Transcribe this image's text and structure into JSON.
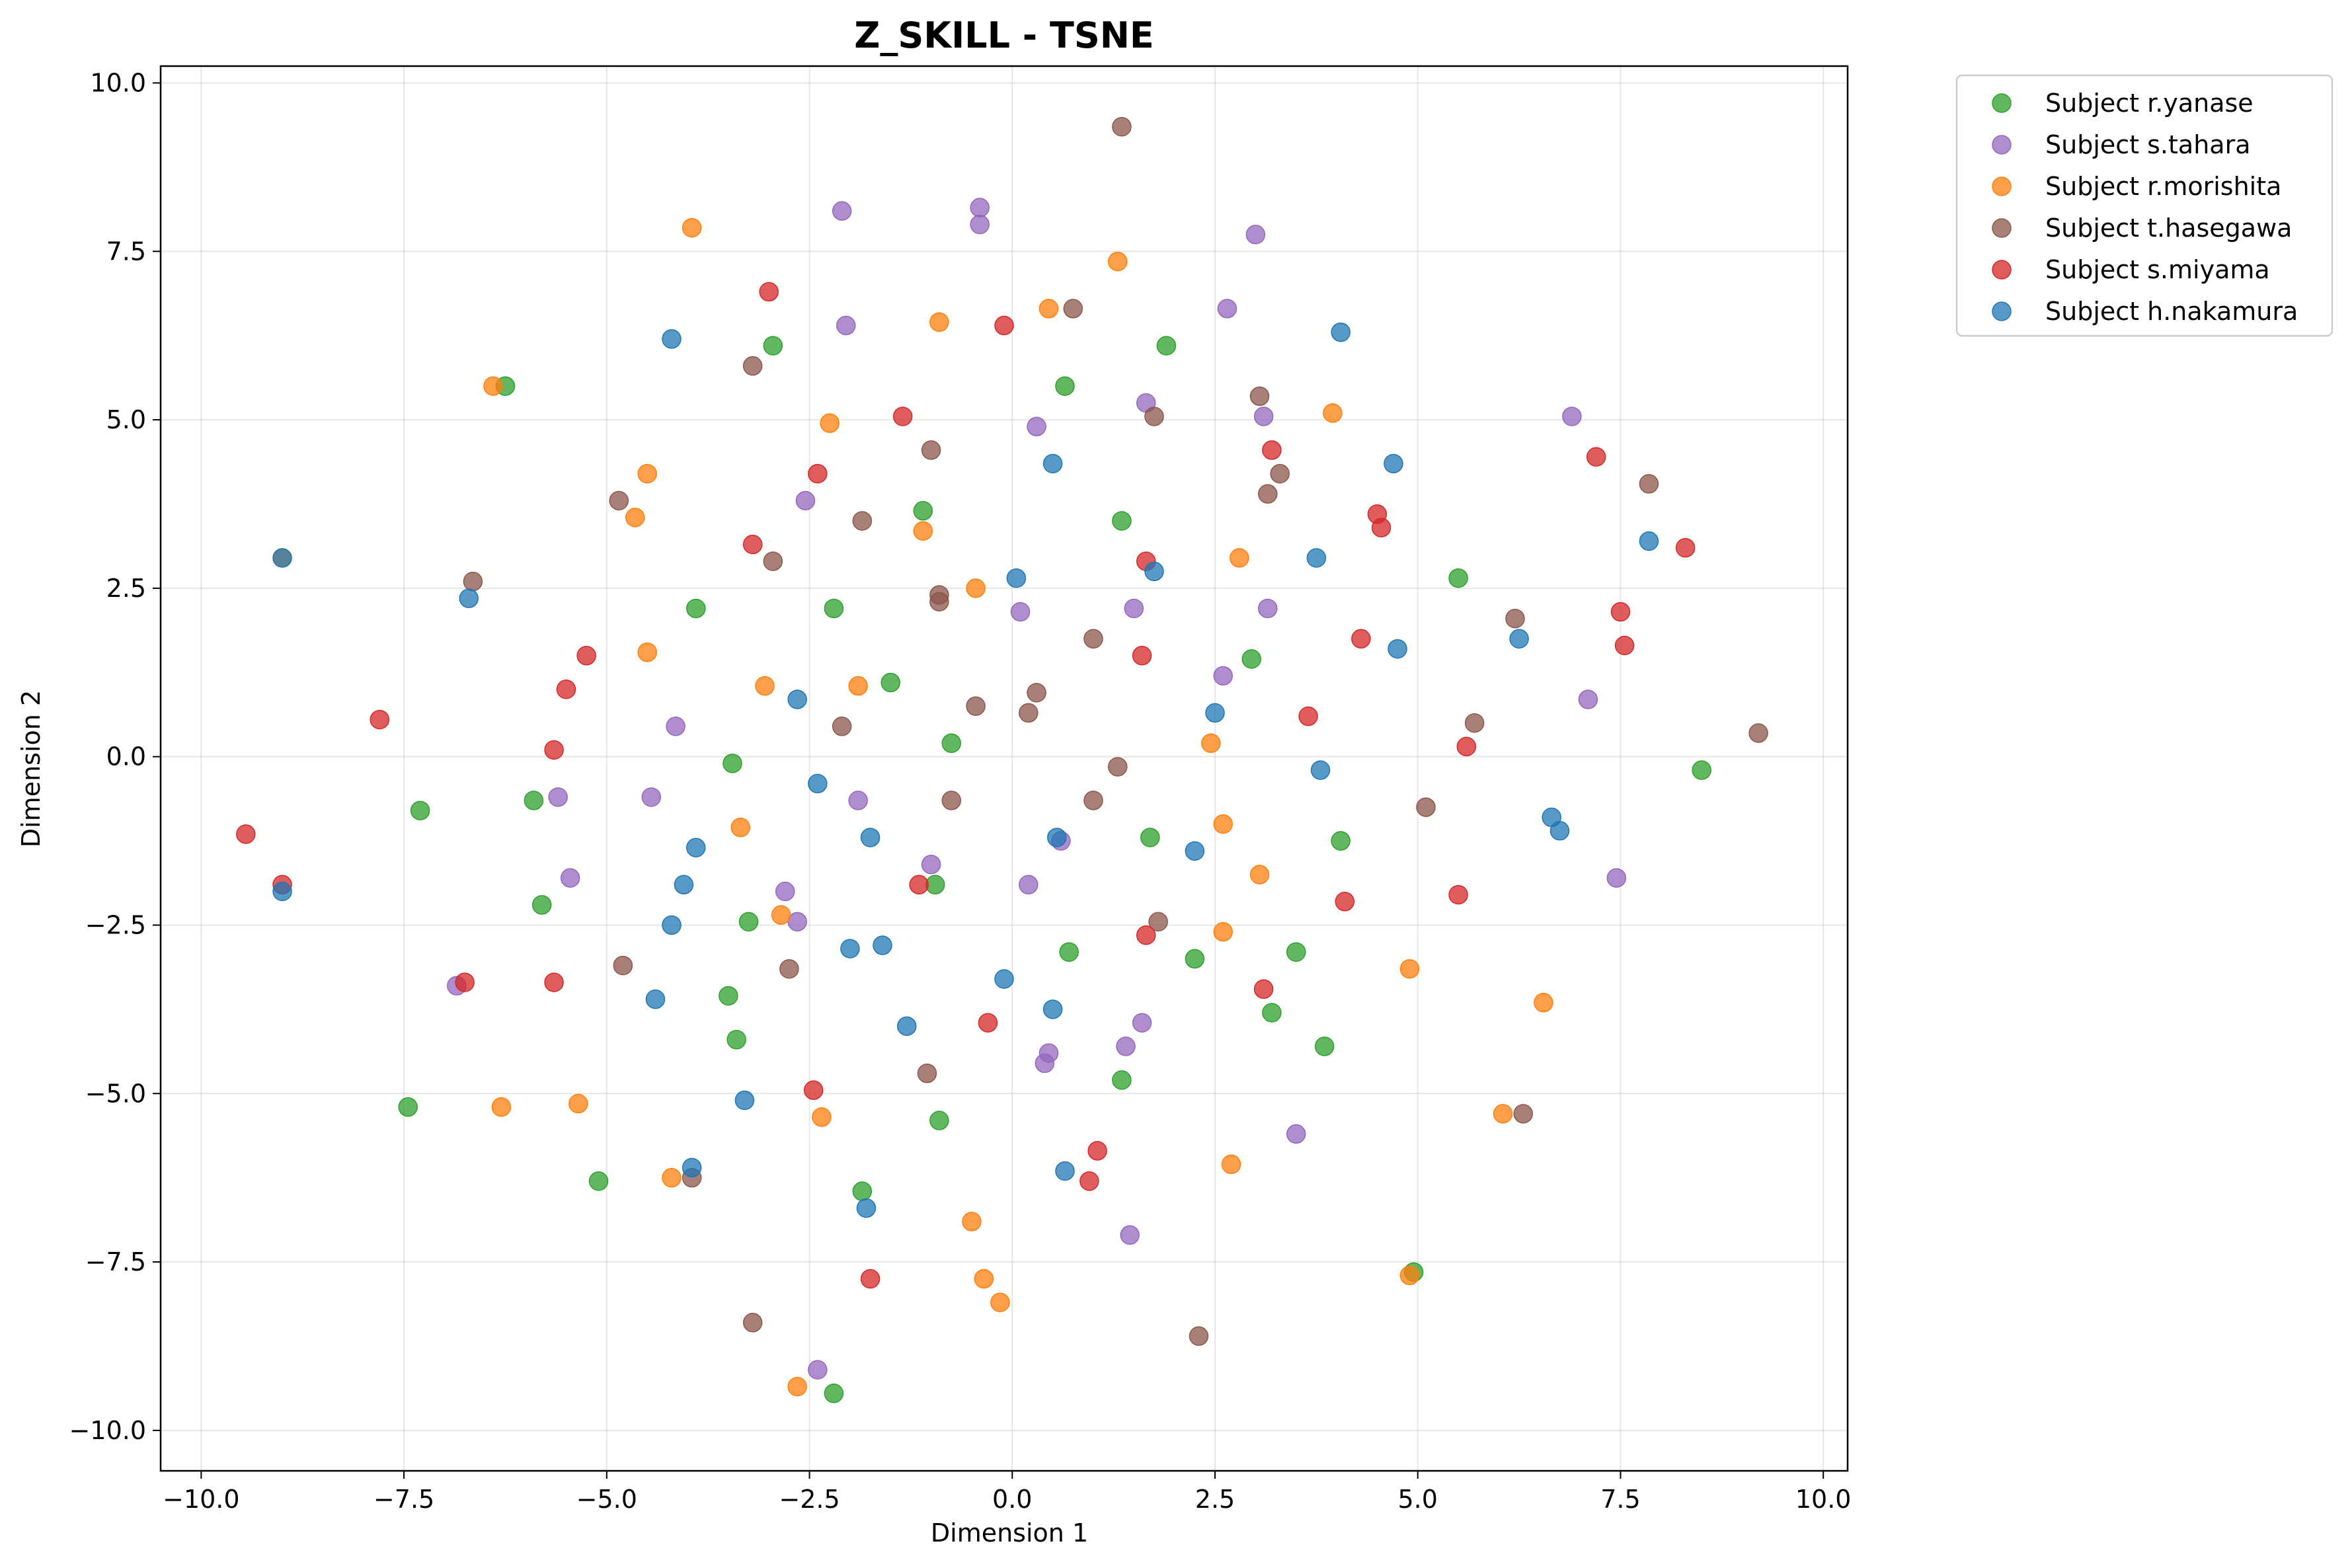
{
  "chart_data": {
    "type": "scatter",
    "title": "Z_SKILL - TSNE",
    "xlabel": "Dimension 1",
    "ylabel": "Dimension 2",
    "xlim": [
      -10.5,
      10.3
    ],
    "ylim": [
      -10.6,
      10.25
    ],
    "xticks": [
      -10.0,
      -7.5,
      -5.0,
      -2.5,
      0.0,
      2.5,
      5.0,
      7.5,
      10.0
    ],
    "xtick_labels": [
      "−10.0",
      "−7.5",
      "−5.0",
      "−2.5",
      "0.0",
      "2.5",
      "5.0",
      "7.5",
      "10.0"
    ],
    "yticks": [
      10.0,
      7.5,
      5.0,
      2.5,
      0.0,
      -2.5,
      -5.0,
      -7.5,
      -10.0
    ],
    "ytick_labels": [
      "10.0",
      "7.5",
      "5.0",
      "2.5",
      "0.0",
      "−2.5",
      "−5.0",
      "−7.5",
      "−10.0"
    ],
    "grid": true,
    "legend_position": "outside-top-right",
    "series": [
      {
        "name": "Subject r.yanase",
        "color": "#2ca02c",
        "points": [
          [
            -6.25,
            5.5
          ],
          [
            -2.95,
            6.1
          ],
          [
            -1.1,
            3.65
          ],
          [
            -2.2,
            2.2
          ],
          [
            -3.9,
            2.2
          ],
          [
            -1.5,
            1.1
          ],
          [
            -0.75,
            0.2
          ],
          [
            -3.45,
            -0.1
          ],
          [
            -5.9,
            -0.65
          ],
          [
            -7.3,
            -0.8
          ],
          [
            -5.8,
            -2.2
          ],
          [
            -3.25,
            -2.45
          ],
          [
            -0.95,
            -1.9
          ],
          [
            -3.5,
            -3.55
          ],
          [
            -3.4,
            -4.2
          ],
          [
            -7.45,
            -5.2
          ],
          [
            -5.1,
            -6.3
          ],
          [
            -0.9,
            -5.4
          ],
          [
            -1.85,
            -6.45
          ],
          [
            -2.2,
            -9.45
          ],
          [
            0.65,
            5.5
          ],
          [
            1.9,
            6.1
          ],
          [
            1.35,
            3.5
          ],
          [
            2.95,
            1.45
          ],
          [
            1.7,
            -1.2
          ],
          [
            0.7,
            -2.9
          ],
          [
            2.25,
            -3.0
          ],
          [
            3.5,
            -2.9
          ],
          [
            3.2,
            -3.8
          ],
          [
            3.85,
            -4.3
          ],
          [
            1.35,
            -4.8
          ],
          [
            4.05,
            -1.25
          ],
          [
            5.5,
            2.65
          ],
          [
            8.5,
            -0.2
          ],
          [
            4.95,
            -7.65
          ]
        ]
      },
      {
        "name": "Subject s.tahara",
        "color": "#9467bd",
        "points": [
          [
            -2.1,
            8.1
          ],
          [
            -0.4,
            8.15
          ],
          [
            -0.4,
            7.9
          ],
          [
            -2.05,
            6.4
          ],
          [
            0.3,
            4.9
          ],
          [
            -2.55,
            3.8
          ],
          [
            0.1,
            2.15
          ],
          [
            -4.15,
            0.45
          ],
          [
            -4.45,
            -0.6
          ],
          [
            -5.6,
            -0.6
          ],
          [
            -5.45,
            -1.8
          ],
          [
            -6.85,
            -3.4
          ],
          [
            -2.8,
            -2.0
          ],
          [
            -2.65,
            -2.45
          ],
          [
            -1.9,
            -0.65
          ],
          [
            -1.0,
            -1.6
          ],
          [
            0.2,
            -1.9
          ],
          [
            0.6,
            -1.25
          ],
          [
            0.45,
            -4.4
          ],
          [
            0.4,
            -4.55
          ],
          [
            1.6,
            -3.95
          ],
          [
            1.4,
            -4.3
          ],
          [
            1.45,
            -7.1
          ],
          [
            -2.4,
            -9.1
          ],
          [
            2.65,
            6.65
          ],
          [
            3.0,
            7.75
          ],
          [
            1.65,
            5.25
          ],
          [
            3.1,
            5.05
          ],
          [
            1.5,
            2.2
          ],
          [
            3.15,
            2.2
          ],
          [
            2.6,
            1.2
          ],
          [
            3.5,
            -5.6
          ],
          [
            6.9,
            5.05
          ],
          [
            7.1,
            0.85
          ],
          [
            7.45,
            -1.8
          ]
        ]
      },
      {
        "name": "Subject r.morishita",
        "color": "#ff7f0e",
        "points": [
          [
            -3.95,
            7.85
          ],
          [
            -6.4,
            5.5
          ],
          [
            -2.25,
            4.95
          ],
          [
            -4.5,
            4.2
          ],
          [
            -4.65,
            3.55
          ],
          [
            -1.1,
            3.35
          ],
          [
            -0.45,
            2.5
          ],
          [
            -4.5,
            1.55
          ],
          [
            -3.05,
            1.05
          ],
          [
            -1.9,
            1.05
          ],
          [
            -3.35,
            -1.05
          ],
          [
            -2.85,
            -2.35
          ],
          [
            -6.3,
            -5.2
          ],
          [
            -5.35,
            -5.15
          ],
          [
            -4.2,
            -6.25
          ],
          [
            -2.35,
            -5.35
          ],
          [
            -0.5,
            -6.9
          ],
          [
            -0.35,
            -7.75
          ],
          [
            -0.15,
            -8.1
          ],
          [
            -2.65,
            -9.35
          ],
          [
            -0.9,
            6.45
          ],
          [
            0.45,
            6.65
          ],
          [
            1.3,
            7.35
          ],
          [
            3.95,
            5.1
          ],
          [
            2.8,
            2.95
          ],
          [
            2.45,
            0.2
          ],
          [
            2.6,
            -1.0
          ],
          [
            3.05,
            -1.75
          ],
          [
            2.6,
            -2.6
          ],
          [
            4.9,
            -3.15
          ],
          [
            6.55,
            -3.65
          ],
          [
            6.05,
            -5.3
          ],
          [
            2.7,
            -6.05
          ],
          [
            4.9,
            -7.7
          ],
          [
            -9.0,
            2.95
          ]
        ]
      },
      {
        "name": "Subject t.hasegawa",
        "color": "#8c564b",
        "points": [
          [
            1.35,
            9.35
          ],
          [
            -3.2,
            5.8
          ],
          [
            0.75,
            6.65
          ],
          [
            1.75,
            5.05
          ],
          [
            -1.0,
            4.55
          ],
          [
            -4.85,
            3.8
          ],
          [
            -1.85,
            3.5
          ],
          [
            -2.95,
            2.9
          ],
          [
            -0.9,
            2.4
          ],
          [
            -0.9,
            2.3
          ],
          [
            -6.65,
            2.6
          ],
          [
            1.0,
            1.75
          ],
          [
            -2.1,
            0.45
          ],
          [
            -0.45,
            0.75
          ],
          [
            0.3,
            0.95
          ],
          [
            0.2,
            0.65
          ],
          [
            1.3,
            -0.15
          ],
          [
            -0.75,
            -0.65
          ],
          [
            1.0,
            -0.65
          ],
          [
            -4.8,
            -3.1
          ],
          [
            -2.75,
            -3.15
          ],
          [
            1.8,
            -2.45
          ],
          [
            -1.05,
            -4.7
          ],
          [
            -3.95,
            -6.25
          ],
          [
            -3.2,
            -8.4
          ],
          [
            2.3,
            -8.6
          ],
          [
            3.05,
            5.35
          ],
          [
            3.3,
            4.2
          ],
          [
            3.15,
            3.9
          ],
          [
            6.2,
            2.05
          ],
          [
            5.7,
            0.5
          ],
          [
            5.1,
            -0.75
          ],
          [
            7.85,
            4.05
          ],
          [
            9.2,
            0.35
          ],
          [
            6.3,
            -5.3
          ]
        ]
      },
      {
        "name": "Subject s.miyama",
        "color": "#d62728",
        "points": [
          [
            -3.0,
            6.9
          ],
          [
            -0.1,
            6.4
          ],
          [
            -1.35,
            5.05
          ],
          [
            -2.4,
            4.2
          ],
          [
            -3.2,
            3.15
          ],
          [
            -5.25,
            1.5
          ],
          [
            -5.5,
            1.0
          ],
          [
            -5.65,
            0.1
          ],
          [
            -7.8,
            0.55
          ],
          [
            -9.45,
            -1.15
          ],
          [
            -9.0,
            -1.9
          ],
          [
            -6.75,
            -3.35
          ],
          [
            -5.65,
            -3.35
          ],
          [
            -1.15,
            -1.9
          ],
          [
            -0.3,
            -3.95
          ],
          [
            -2.45,
            -4.95
          ],
          [
            -1.75,
            -7.75
          ],
          [
            1.05,
            -5.85
          ],
          [
            0.95,
            -6.3
          ],
          [
            1.65,
            -2.65
          ],
          [
            1.6,
            1.5
          ],
          [
            1.65,
            2.9
          ],
          [
            3.2,
            4.55
          ],
          [
            3.65,
            0.6
          ],
          [
            4.3,
            1.75
          ],
          [
            4.5,
            3.6
          ],
          [
            4.55,
            3.4
          ],
          [
            3.1,
            -3.45
          ],
          [
            4.1,
            -2.15
          ],
          [
            5.5,
            -2.05
          ],
          [
            5.6,
            0.15
          ],
          [
            7.2,
            4.45
          ],
          [
            7.5,
            2.15
          ],
          [
            7.55,
            1.65
          ],
          [
            8.3,
            3.1
          ]
        ]
      },
      {
        "name": "Subject h.nakamura",
        "color": "#1f77b4",
        "points": [
          [
            -4.2,
            6.2
          ],
          [
            -9.0,
            2.95
          ],
          [
            -6.7,
            2.35
          ],
          [
            -2.65,
            0.85
          ],
          [
            -2.4,
            -0.4
          ],
          [
            -3.9,
            -1.35
          ],
          [
            -1.75,
            -1.2
          ],
          [
            -4.05,
            -1.9
          ],
          [
            -4.2,
            -2.5
          ],
          [
            -2.0,
            -2.85
          ],
          [
            -1.6,
            -2.8
          ],
          [
            -4.4,
            -3.6
          ],
          [
            -3.3,
            -5.1
          ],
          [
            -3.95,
            -6.1
          ],
          [
            -1.8,
            -6.7
          ],
          [
            -1.3,
            -4.0
          ],
          [
            -0.1,
            -3.3
          ],
          [
            0.5,
            -3.75
          ],
          [
            0.55,
            -1.2
          ],
          [
            0.05,
            2.65
          ],
          [
            0.5,
            4.35
          ],
          [
            0.65,
            -6.15
          ],
          [
            -9.0,
            -2.0
          ],
          [
            1.75,
            2.75
          ],
          [
            2.5,
            0.65
          ],
          [
            2.25,
            -1.4
          ],
          [
            4.05,
            6.3
          ],
          [
            4.7,
            4.35
          ],
          [
            3.75,
            2.95
          ],
          [
            4.75,
            1.6
          ],
          [
            3.8,
            -0.2
          ],
          [
            6.25,
            1.75
          ],
          [
            6.65,
            -0.9
          ],
          [
            6.75,
            -1.1
          ],
          [
            7.85,
            3.2
          ]
        ]
      }
    ]
  }
}
